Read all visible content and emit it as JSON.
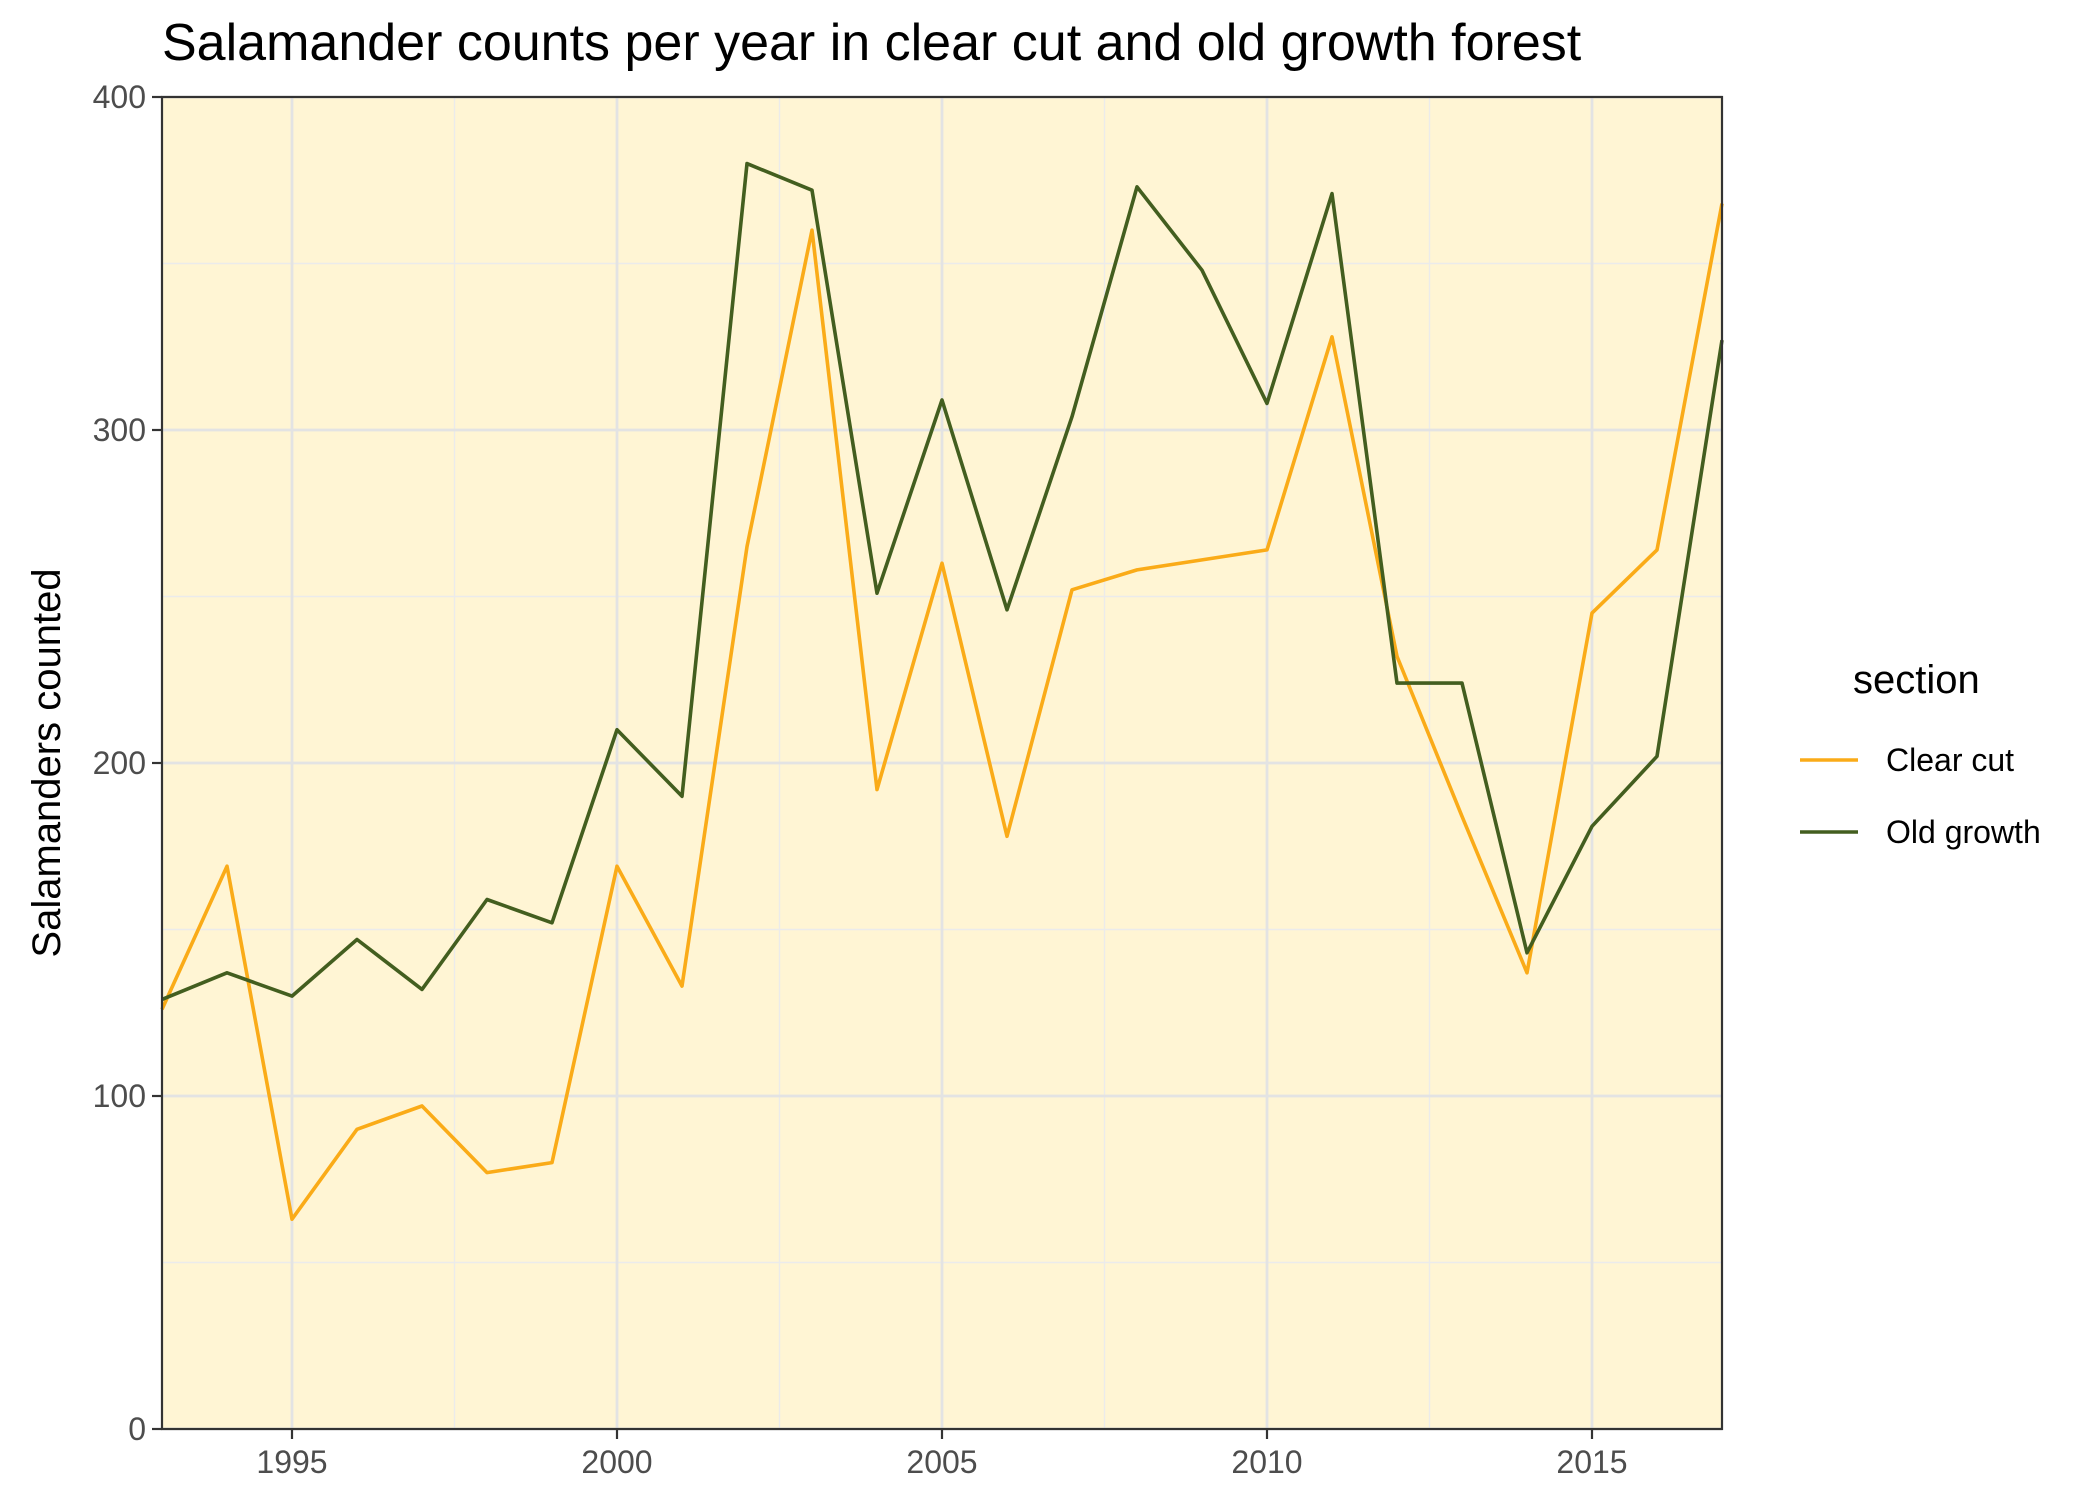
{
  "chart_data": {
    "type": "line",
    "title": "Salamander counts per year in clear cut and old growth forest",
    "xlabel": "",
    "ylabel": "Salamanders counted",
    "xlim": [
      1993,
      2017
    ],
    "ylim": [
      0,
      400
    ],
    "x_ticks": [
      1995,
      2000,
      2005,
      2010,
      2015
    ],
    "y_ticks": [
      0,
      100,
      200,
      300,
      400
    ],
    "grid": true,
    "legend_position": "right",
    "legend_title": "section",
    "panel_color": "#FFF5D4",
    "x": [
      1993,
      1994,
      1995,
      1996,
      1997,
      1998,
      1999,
      2000,
      2001,
      2002,
      2003,
      2004,
      2005,
      2006,
      2007,
      2008,
      2009,
      2010,
      2011,
      2012,
      2013,
      2014,
      2015,
      2016,
      2017
    ],
    "series": [
      {
        "name": "Clear cut",
        "color": "#FAAB18",
        "values": [
          126,
          169,
          63,
          90,
          97,
          77,
          80,
          169,
          133,
          265,
          360,
          192,
          260,
          178,
          252,
          258,
          261,
          264,
          328,
          232,
          184,
          137,
          245,
          264,
          368
        ]
      },
      {
        "name": "Old growth",
        "color": "#435E1F",
        "values": [
          129,
          137,
          130,
          147,
          132,
          159,
          152,
          210,
          190,
          380,
          372,
          251,
          309,
          246,
          304,
          373,
          348,
          308,
          371,
          224,
          224,
          143,
          181,
          202,
          327
        ]
      }
    ]
  }
}
